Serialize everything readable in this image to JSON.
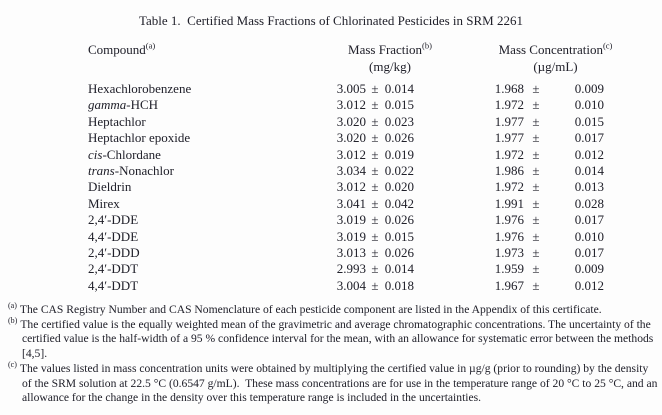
{
  "page": {
    "title": "Table 1.  Certified Mass Fractions of Chlorinated Pesticides in SRM 2261"
  },
  "table": {
    "sym_pm": "±",
    "headers": {
      "compound": {
        "label": "Compound",
        "sup": "(a)"
      },
      "mass_fraction": {
        "label": "Mass Fraction",
        "sup": "(b)",
        "unit": "(mg/kg)"
      },
      "mass_concentration": {
        "label": "Mass Concentration",
        "sup": "(c)",
        "unit": "(µg/mL)"
      }
    },
    "rows": [
      {
        "italic": "",
        "name": "Hexachlorobenzene",
        "mf": "3.005",
        "mf_u": "0.014",
        "mc": "1.968",
        "mc_u": "0.009"
      },
      {
        "italic": "gamma",
        "name": "-HCH",
        "mf": "3.012",
        "mf_u": "0.015",
        "mc": "1.972",
        "mc_u": "0.010"
      },
      {
        "italic": "",
        "name": "Heptachlor",
        "mf": "3.020",
        "mf_u": "0.023",
        "mc": "1.977",
        "mc_u": "0.015"
      },
      {
        "italic": "",
        "name": "Heptachlor epoxide",
        "mf": "3.020",
        "mf_u": "0.026",
        "mc": "1.977",
        "mc_u": "0.017"
      },
      {
        "italic": "cis",
        "name": "-Chlordane",
        "mf": "3.012",
        "mf_u": "0.019",
        "mc": "1.972",
        "mc_u": "0.012"
      },
      {
        "italic": "trans",
        "name": "-Nonachlor",
        "mf": "3.034",
        "mf_u": "0.022",
        "mc": "1.986",
        "mc_u": "0.014"
      },
      {
        "italic": "",
        "name": "Dieldrin",
        "mf": "3.012",
        "mf_u": "0.020",
        "mc": "1.972",
        "mc_u": "0.013"
      },
      {
        "italic": "",
        "name": "Mirex",
        "mf": "3.041",
        "mf_u": "0.042",
        "mc": "1.991",
        "mc_u": "0.028"
      },
      {
        "italic": "",
        "name": "2,4′-DDE",
        "mf": "3.019",
        "mf_u": "0.026",
        "mc": "1.976",
        "mc_u": "0.017"
      },
      {
        "italic": "",
        "name": "4,4′-DDE",
        "mf": "3.019",
        "mf_u": "0.015",
        "mc": "1.976",
        "mc_u": "0.010"
      },
      {
        "italic": "",
        "name": "2,4′-DDD",
        "mf": "3.013",
        "mf_u": "0.026",
        "mc": "1.973",
        "mc_u": "0.017"
      },
      {
        "italic": "",
        "name": "2,4′-DDT",
        "mf": "2.993",
        "mf_u": "0.014",
        "mc": "1.959",
        "mc_u": "0.009"
      },
      {
        "italic": "",
        "name": "4,4′-DDT",
        "mf": "3.004",
        "mf_u": "0.018",
        "mc": "1.967",
        "mc_u": "0.012"
      }
    ]
  },
  "footnotes": [
    {
      "marker": "(a)",
      "text": "The CAS Registry Number and CAS Nomenclature of each pesticide component are listed in the Appendix of this certificate."
    },
    {
      "marker": "(b)",
      "text": "The certified value is the equally weighted mean of the gravimetric and average chromatographic concentrations. The uncertainty of the certified value is the half-width of a 95 % confidence interval for the mean, with an allowance for systematic error between the methods [4,5]."
    },
    {
      "marker": "(c)",
      "text": "The values listed in mass concentration units were obtained by multiplying the certified value in µg/g (prior to rounding) by the density of the SRM solution at 22.5 °C (0.6547 g/mL).  These mass concentrations are for use in the temperature range of 20 °C to 25 °C, and an allowance for the change in the density over this temperature range is included in the uncertainties."
    }
  ]
}
